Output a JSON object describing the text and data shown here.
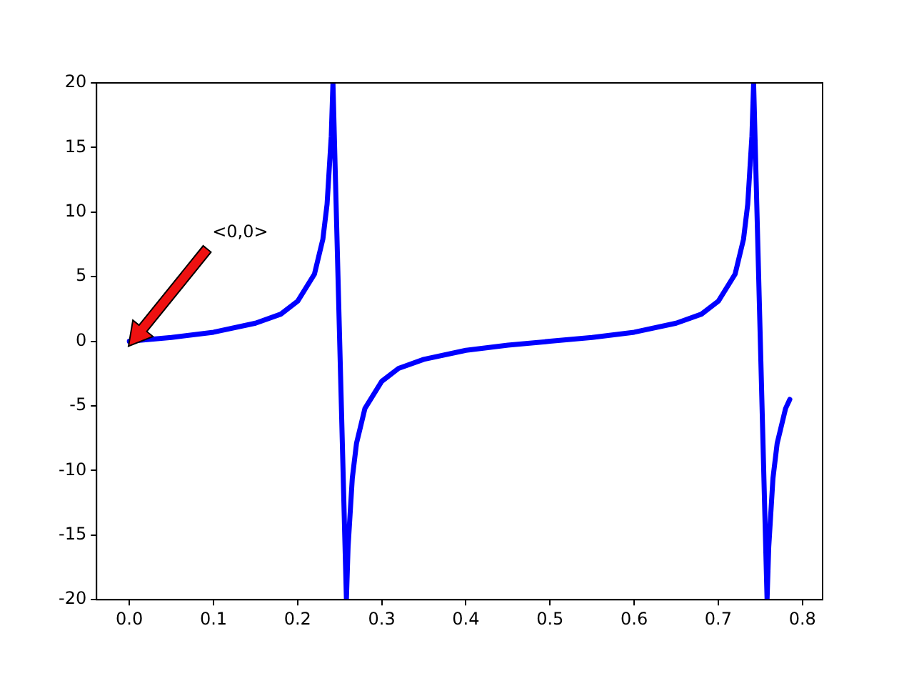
{
  "chart_data": {
    "type": "line",
    "x": [
      0,
      0.05,
      0.1,
      0.15,
      0.18,
      0.2,
      0.22,
      0.23,
      0.235,
      0.24,
      0.242,
      0.258,
      0.26,
      0.265,
      0.27,
      0.28,
      0.3,
      0.32,
      0.35,
      0.4,
      0.45,
      0.5,
      0.55,
      0.6,
      0.65,
      0.68,
      0.7,
      0.72,
      0.73,
      0.735,
      0.74,
      0.742,
      0.758,
      0.76,
      0.765,
      0.77,
      0.78,
      0.785
    ],
    "series": [
      {
        "color": "#0000ff",
        "values": [
          0,
          0.3,
          0.7,
          1.4,
          2.1,
          3.1,
          5.2,
          7.9,
          10.6,
          15.9,
          20,
          -20,
          -15.9,
          -10.6,
          -7.9,
          -5.2,
          -3.1,
          -2.1,
          -1.4,
          -0.7,
          -0.3,
          0,
          0.3,
          0.7,
          1.4,
          2.1,
          3.1,
          5.2,
          7.9,
          10.6,
          15.9,
          20,
          -20,
          -15.9,
          -10.6,
          -7.9,
          -5.2,
          -4.5
        ]
      }
    ],
    "xlim": [
      -0.039,
      0.824
    ],
    "xticks": [
      {
        "value": 0,
        "label": "0.0"
      },
      {
        "value": 0.1,
        "label": "0.1"
      },
      {
        "value": 0.2,
        "label": "0.2"
      },
      {
        "value": 0.3,
        "label": "0.3"
      },
      {
        "value": 0.4,
        "label": "0.4"
      },
      {
        "value": 0.5,
        "label": "0.5"
      },
      {
        "value": 0.6,
        "label": "0.6"
      },
      {
        "value": 0.7,
        "label": "0.7"
      },
      {
        "value": 0.8,
        "label": "0.8"
      }
    ],
    "ylim": [
      -20,
      20
    ],
    "yticks": [
      -20,
      -15,
      -10,
      -5,
      0,
      5,
      10,
      15,
      20
    ],
    "grid": false,
    "marker": "none",
    "line_style": "solid",
    "annotations": [
      "<0,0>"
    ]
  }
}
